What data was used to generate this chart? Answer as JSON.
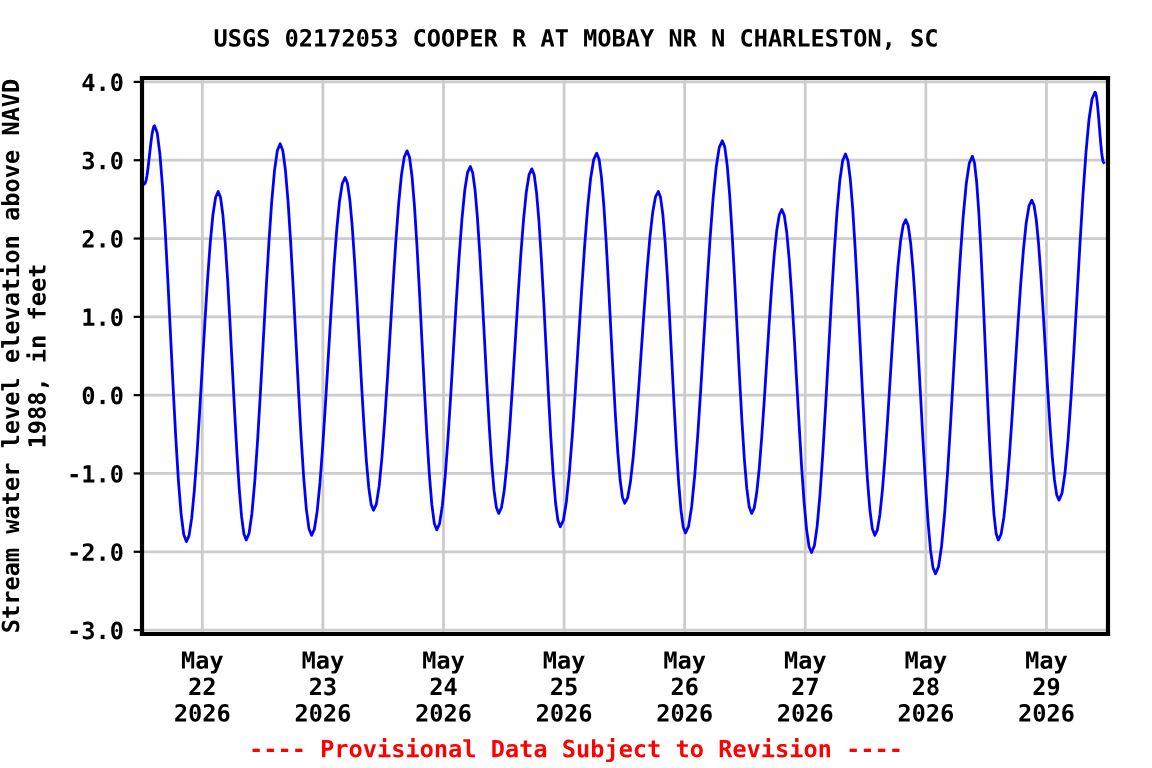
{
  "chart_data": {
    "type": "line",
    "title": "USGS 02172053 COOPER R AT MOBAY NR N CHARLESTON, SC",
    "ylabel": "Stream water level elevation above NAVD\n1988, in feet",
    "x": [
      "2026-05-21T12:30",
      "2026-05-21T14:30",
      "2026-05-21T20:50",
      "2026-05-22T03:10",
      "2026-05-22T08:45",
      "2026-05-22T15:30",
      "2026-05-22T21:45",
      "2026-05-23T04:25",
      "2026-05-23T10:05",
      "2026-05-23T16:45",
      "2026-05-23T22:40",
      "2026-05-24T05:20",
      "2026-05-24T11:00",
      "2026-05-24T17:35",
      "2026-05-24T23:15",
      "2026-05-25T06:30",
      "2026-05-25T12:05",
      "2026-05-25T18:45",
      "2026-05-26T00:10",
      "2026-05-26T07:30",
      "2026-05-26T13:20",
      "2026-05-26T19:20",
      "2026-05-27T01:15",
      "2026-05-27T08:00",
      "2026-05-27T13:50",
      "2026-05-27T20:00",
      "2026-05-28T01:55",
      "2026-05-28T09:15",
      "2026-05-28T14:25",
      "2026-05-28T21:05",
      "2026-05-29T02:30",
      "2026-05-29T09:40",
      "2026-05-29T11:25"
    ],
    "series": [
      {
        "color": "#0000ff",
        "values": [
          2.7,
          3.44,
          -1.87,
          2.6,
          -1.85,
          3.21,
          -1.79,
          2.78,
          -1.47,
          3.12,
          -1.72,
          2.92,
          -1.51,
          2.89,
          -1.68,
          3.09,
          -1.38,
          2.6,
          -1.76,
          3.25,
          -1.51,
          2.37,
          -2.01,
          3.08,
          -1.79,
          2.24,
          -2.28,
          3.05,
          -1.85,
          2.49,
          -1.34,
          3.87,
          2.97
        ]
      }
    ],
    "xlim": [
      "2026-05-21T12:00",
      "2026-05-29T12:15"
    ],
    "xticks": [
      {
        "value": "2026-05-22",
        "label": "May\n22\n2026"
      },
      {
        "value": "2026-05-23",
        "label": "May\n23\n2026"
      },
      {
        "value": "2026-05-24",
        "label": "May\n24\n2026"
      },
      {
        "value": "2026-05-25",
        "label": "May\n25\n2026"
      },
      {
        "value": "2026-05-26",
        "label": "May\n26\n2026"
      },
      {
        "value": "2026-05-27",
        "label": "May\n27\n2026"
      },
      {
        "value": "2026-05-28",
        "label": "May\n28\n2026"
      },
      {
        "value": "2026-05-29",
        "label": "May\n29\n2026"
      }
    ],
    "ylim": [
      -3.05,
      4.05
    ],
    "yticks": [
      {
        "value": -3,
        "label": "-3.0"
      },
      {
        "value": -2,
        "label": "-2.0"
      },
      {
        "value": -1,
        "label": "-1.0"
      },
      {
        "value": 0,
        "label": "0.0"
      },
      {
        "value": 1,
        "label": "1.0"
      },
      {
        "value": 2,
        "label": "2.0"
      },
      {
        "value": 3,
        "label": "3.0"
      },
      {
        "value": 4,
        "label": "4.0"
      }
    ],
    "grid": true,
    "annotations": [
      "---- Provisional Data Subject to Revision ----"
    ]
  }
}
